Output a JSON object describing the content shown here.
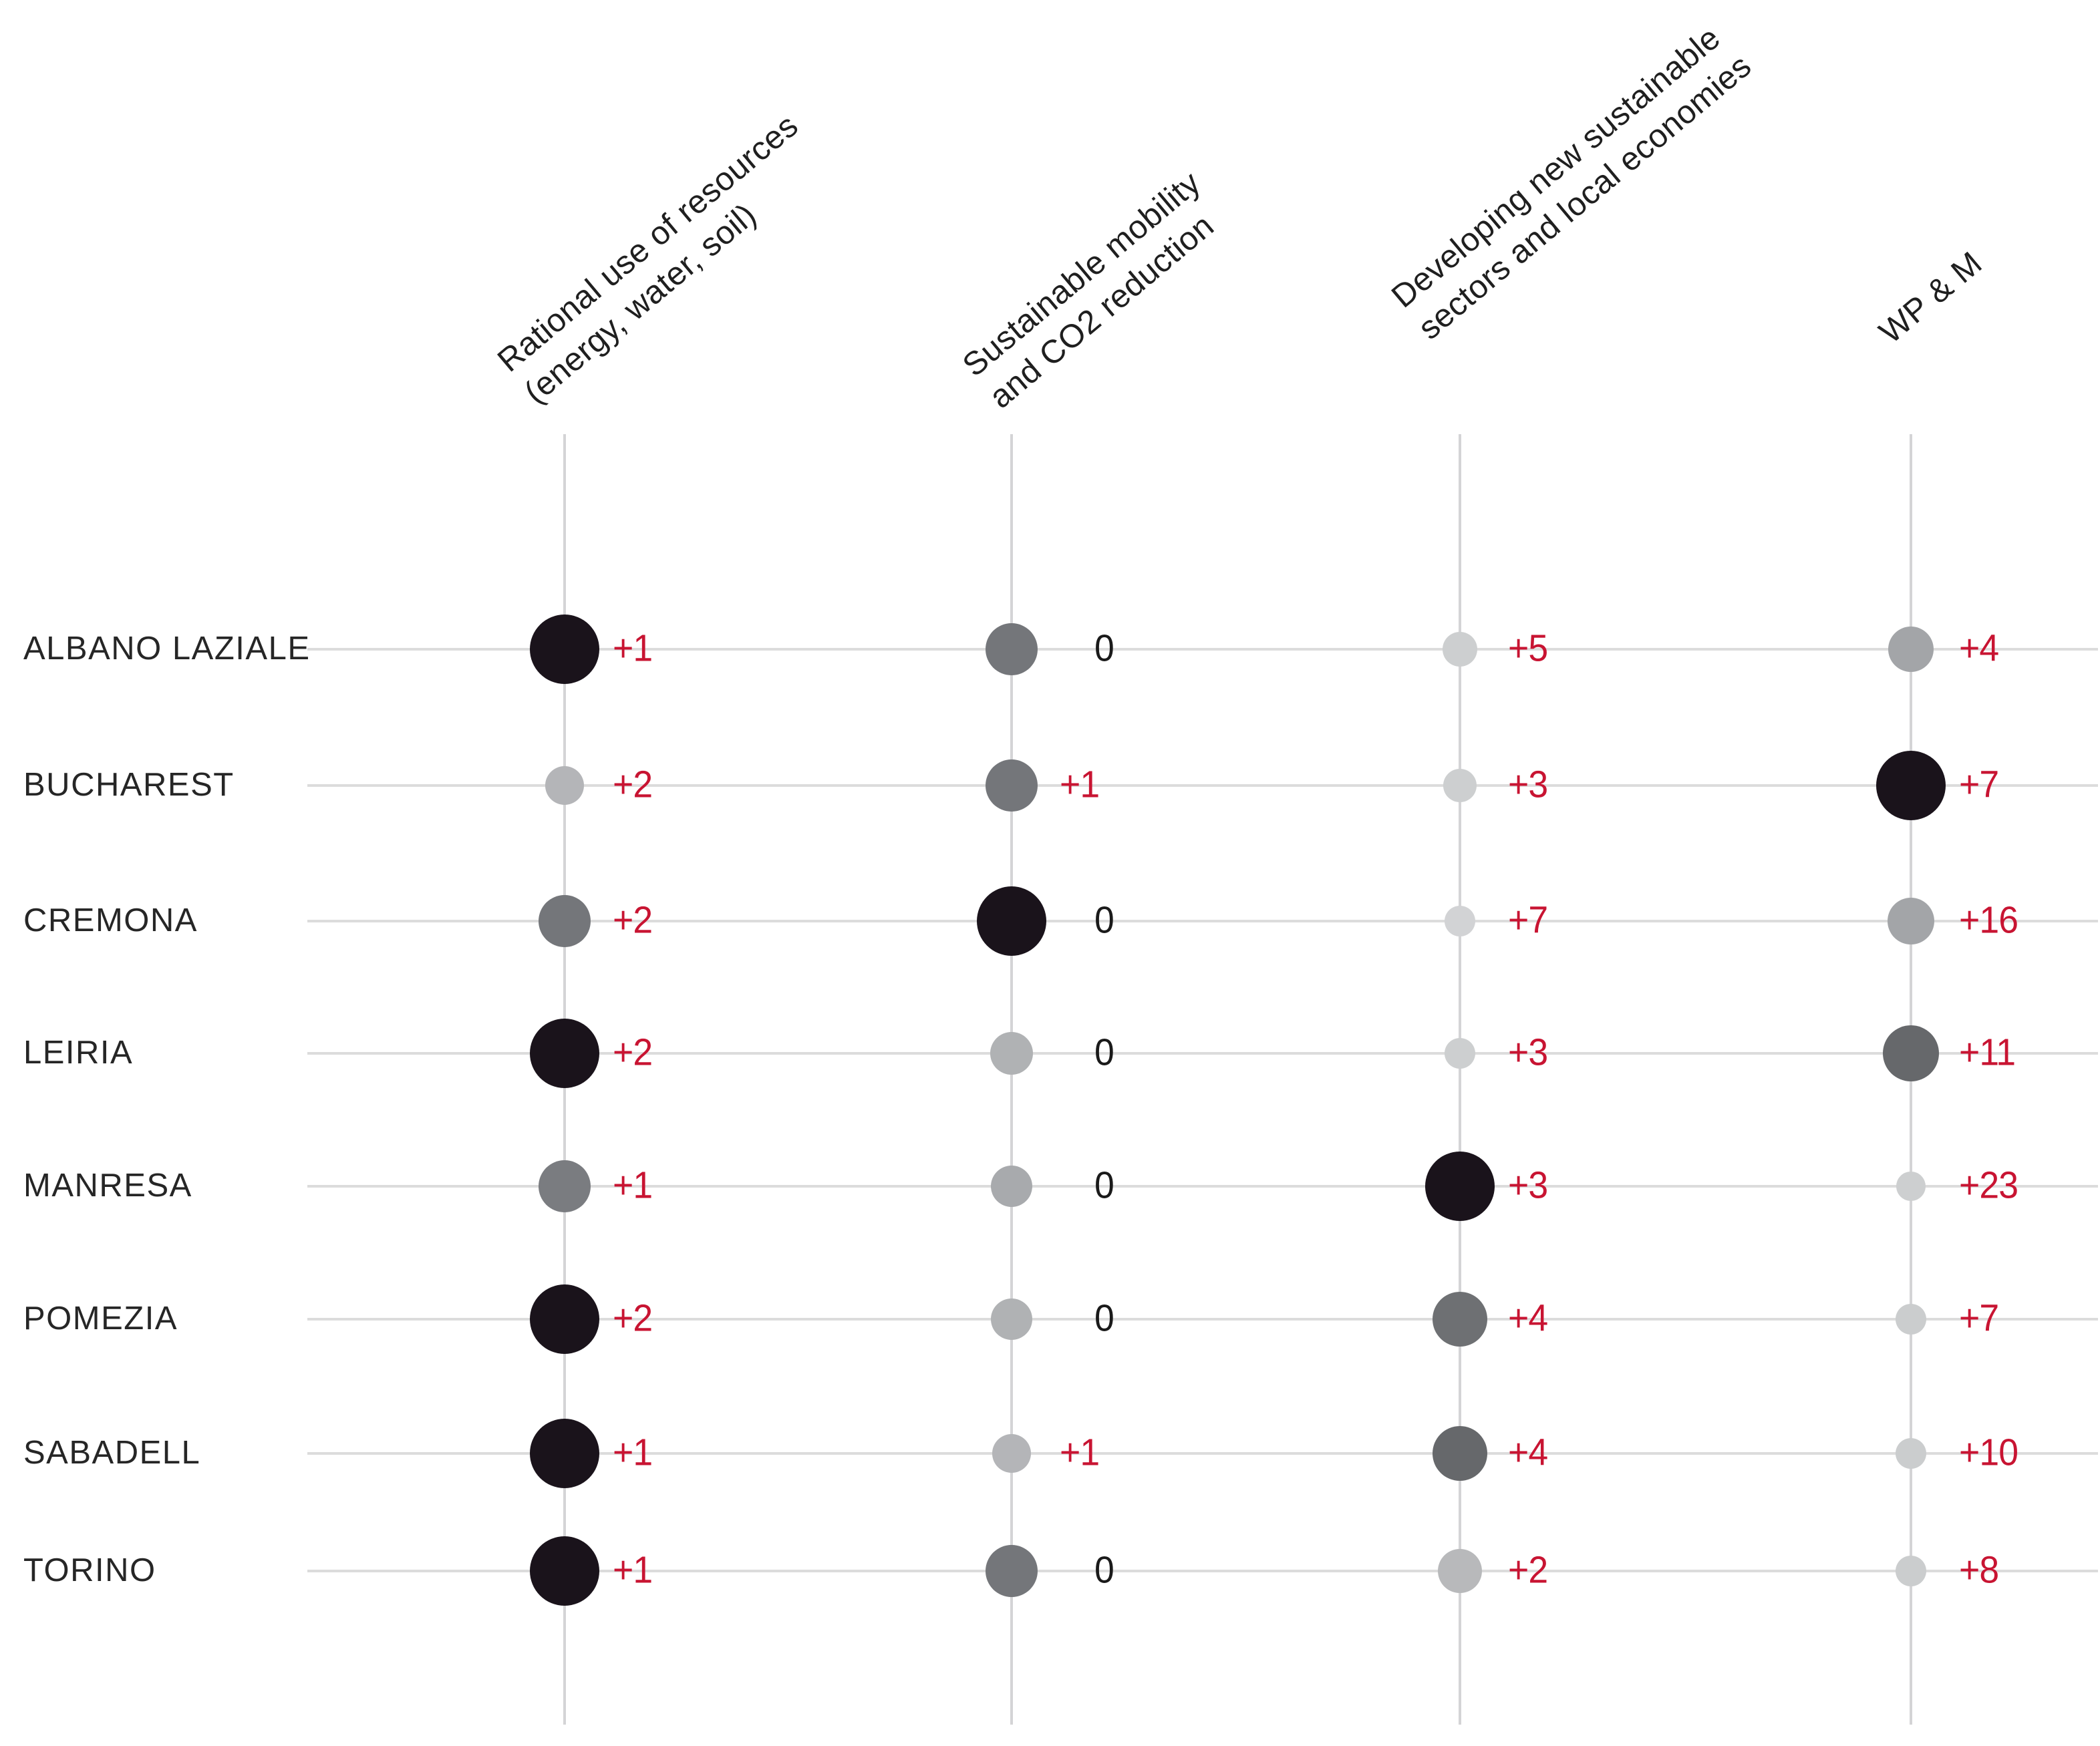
{
  "chart_data": {
    "type": "bubble-matrix",
    "title": "",
    "legend": "none",
    "grid": "light-grey crosshair gridlines (vertical per column, horizontal per row)",
    "columns": [
      {
        "id": "rational-use-of-resources",
        "label_lines": [
          "Rational use of resources",
          "(energy, water, soil)"
        ]
      },
      {
        "id": "sustainable-mobility",
        "label_lines": [
          "Sustainable mobility",
          "and CO2 reduction"
        ]
      },
      {
        "id": "new-sustainable-sectors",
        "label_lines": [
          "Developing new sustainable",
          "sectors and local economies"
        ]
      },
      {
        "id": "wp-and-m",
        "label_lines": [
          "WP & M"
        ]
      }
    ],
    "rows": [
      {
        "city": "ALBANO LAZIALE",
        "cells": [
          {
            "value": "+1",
            "value_color": "#c81432",
            "dot_color": "#1a131b",
            "dot_size": 104
          },
          {
            "value": "0",
            "value_color": "#1a1a1a",
            "dot_color": "#74767a",
            "dot_size": 78
          },
          {
            "value": "+5",
            "value_color": "#c81432",
            "dot_color": "#cdcfd0",
            "dot_size": 52
          },
          {
            "value": "+4",
            "value_color": "#c81432",
            "dot_color": "#a3a5a8",
            "dot_size": 68
          }
        ]
      },
      {
        "city": "BUCHAREST",
        "cells": [
          {
            "value": "+2",
            "value_color": "#c81432",
            "dot_color": "#b4b5b8",
            "dot_size": 58
          },
          {
            "value": "+1",
            "value_color": "#c81432",
            "dot_color": "#74767a",
            "dot_size": 78
          },
          {
            "value": "+3",
            "value_color": "#c81432",
            "dot_color": "#cdcfd0",
            "dot_size": 50
          },
          {
            "value": "+7",
            "value_color": "#c81432",
            "dot_color": "#1a131b",
            "dot_size": 104
          }
        ]
      },
      {
        "city": "CREMONA",
        "cells": [
          {
            "value": "+2",
            "value_color": "#c81432",
            "dot_color": "#74767a",
            "dot_size": 78
          },
          {
            "value": "0",
            "value_color": "#1a1a1a",
            "dot_color": "#1a131b",
            "dot_size": 104
          },
          {
            "value": "+7",
            "value_color": "#c81432",
            "dot_color": "#d2d3d5",
            "dot_size": 46
          },
          {
            "value": "+16",
            "value_color": "#c81432",
            "dot_color": "#a3a5a8",
            "dot_size": 70
          }
        ]
      },
      {
        "city": "LEIRIA",
        "cells": [
          {
            "value": "+2",
            "value_color": "#c81432",
            "dot_color": "#1a131b",
            "dot_size": 104
          },
          {
            "value": "0",
            "value_color": "#1a1a1a",
            "dot_color": "#b0b2b4",
            "dot_size": 64
          },
          {
            "value": "+3",
            "value_color": "#c81432",
            "dot_color": "#cdcfd0",
            "dot_size": 46
          },
          {
            "value": "+11",
            "value_color": "#c81432",
            "dot_color": "#66686b",
            "dot_size": 84
          }
        ]
      },
      {
        "city": "MANRESA",
        "cells": [
          {
            "value": "+1",
            "value_color": "#c81432",
            "dot_color": "#7a7c80",
            "dot_size": 78
          },
          {
            "value": "0",
            "value_color": "#1a1a1a",
            "dot_color": "#a8aaad",
            "dot_size": 62
          },
          {
            "value": "+3",
            "value_color": "#c81432",
            "dot_color": "#1a131b",
            "dot_size": 104
          },
          {
            "value": "+23",
            "value_color": "#c81432",
            "dot_color": "#cdcfd0",
            "dot_size": 44
          }
        ]
      },
      {
        "city": "POMEZIA",
        "cells": [
          {
            "value": "+2",
            "value_color": "#c81432",
            "dot_color": "#1a131b",
            "dot_size": 104
          },
          {
            "value": "0",
            "value_color": "#1a1a1a",
            "dot_color": "#b0b2b4",
            "dot_size": 62
          },
          {
            "value": "+4",
            "value_color": "#c81432",
            "dot_color": "#6e7073",
            "dot_size": 82
          },
          {
            "value": "+7",
            "value_color": "#c81432",
            "dot_color": "#cbcdce",
            "dot_size": 46
          }
        ]
      },
      {
        "city": "SABADELL",
        "cells": [
          {
            "value": "+1",
            "value_color": "#c81432",
            "dot_color": "#1a131b",
            "dot_size": 104
          },
          {
            "value": "+1",
            "value_color": "#c81432",
            "dot_color": "#b4b5b8",
            "dot_size": 58
          },
          {
            "value": "+4",
            "value_color": "#c81432",
            "dot_color": "#66686b",
            "dot_size": 82
          },
          {
            "value": "+10",
            "value_color": "#c81432",
            "dot_color": "#cbcdce",
            "dot_size": 46
          }
        ]
      },
      {
        "city": "TORINO",
        "cells": [
          {
            "value": "+1",
            "value_color": "#c81432",
            "dot_color": "#1a131b",
            "dot_size": 104
          },
          {
            "value": "0",
            "value_color": "#1a1a1a",
            "dot_color": "#74767a",
            "dot_size": 78
          },
          {
            "value": "+2",
            "value_color": "#c81432",
            "dot_color": "#b8b9bb",
            "dot_size": 66
          },
          {
            "value": "+8",
            "value_color": "#c81432",
            "dot_color": "#cbcdce",
            "dot_size": 46
          }
        ]
      }
    ]
  },
  "colors": {
    "background": "#ffffff",
    "positive_value_text": "#c81432",
    "zero_value_text": "#1a1a1a",
    "vertical_gridline": "#d4d4d6",
    "horizontal_gridline": "#dcdcdc",
    "row_label_text": "#262626",
    "header_text": "#1f1f1f",
    "dot_black": "#1a131b"
  }
}
